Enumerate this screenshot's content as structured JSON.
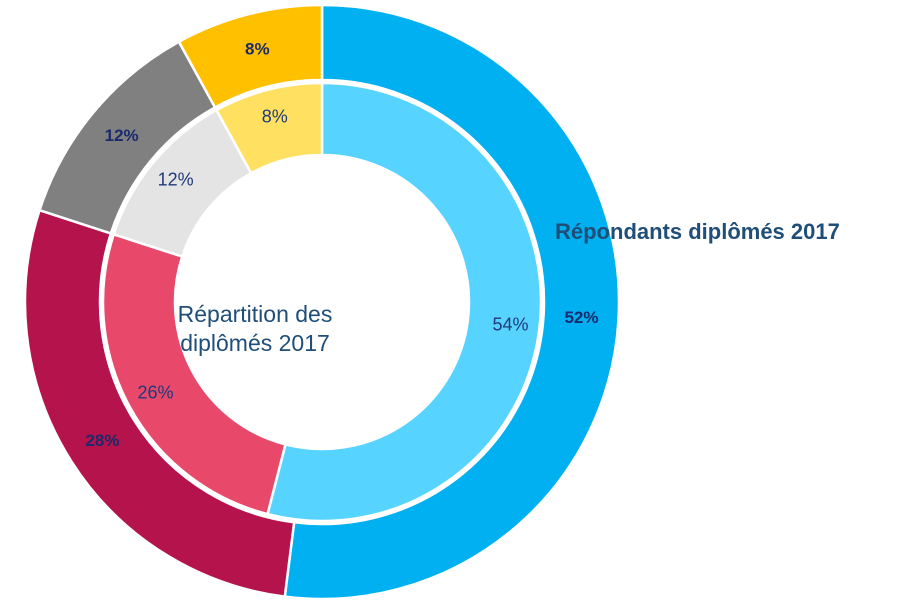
{
  "chart_data": {
    "type": "donut",
    "series": [
      {
        "name": "Répondants diplômés 2017",
        "colors": [
          "#00b0f0",
          "#b5134b",
          "#808080",
          "#ffc000"
        ],
        "values": [
          52,
          28,
          12,
          8
        ],
        "value_labels": [
          "52%",
          "28%",
          "12%",
          "8%"
        ]
      },
      {
        "name": "Répartition des diplômés 2017",
        "colors": [
          "#57d3ff",
          "#e8486a",
          "#e4e4e4",
          "#ffe060"
        ],
        "values": [
          54,
          26,
          12,
          8
        ],
        "value_labels": [
          "54%",
          "26%",
          "12%",
          "8%"
        ]
      }
    ]
  }
}
